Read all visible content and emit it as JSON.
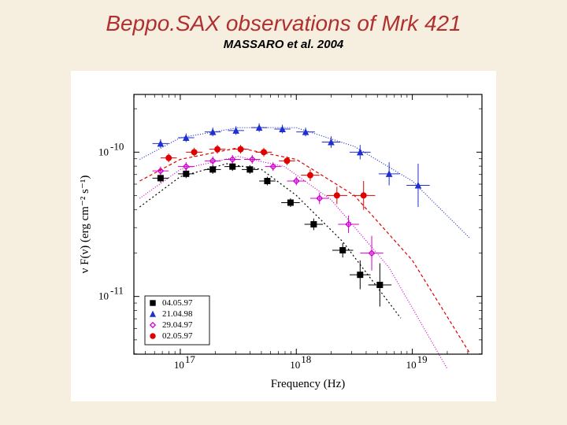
{
  "title": "Beppo.SAX observations of Mrk 421",
  "subtitle": "MASSARO et al. 2004",
  "chart": {
    "type": "scatter",
    "background_color": "#ffffff",
    "page_background": "#f6efe0",
    "xlabel": "Frequency   (Hz)",
    "ylabel": "ν F(ν)   (erg cm⁻² s⁻¹)",
    "label_fontsize": 15,
    "tick_fontsize": 13,
    "x_scale": "log",
    "y_scale": "log",
    "xlim_log10": [
      16.6,
      19.6
    ],
    "ylim_log10": [
      -11.4,
      -9.6
    ],
    "xticks_log10": [
      17,
      18,
      19
    ],
    "yticks_log10": [
      -11,
      -10
    ],
    "xtick_labels": [
      "10^17",
      "10^18",
      "10^19"
    ],
    "ytick_labels": [
      "10^-11",
      "10^-10"
    ],
    "minor_ticks": true,
    "series": [
      {
        "id": "s0_04_05_97",
        "label": "04.05.97",
        "marker": "square_filled",
        "color": "#000000",
        "line_color": "#000000",
        "line_dash": "2,3",
        "points_log10": [
          [
            16.83,
            -10.18
          ],
          [
            17.05,
            -10.15
          ],
          [
            17.28,
            -10.12
          ],
          [
            17.45,
            -10.1
          ],
          [
            17.6,
            -10.12
          ],
          [
            17.75,
            -10.2
          ],
          [
            17.95,
            -10.35
          ],
          [
            18.15,
            -10.5
          ],
          [
            18.4,
            -10.68
          ],
          [
            18.55,
            -10.85
          ],
          [
            18.72,
            -10.92
          ]
        ],
        "y_err_log10": [
          0.03,
          0.03,
          0.03,
          0.03,
          0.03,
          0.03,
          0.03,
          0.04,
          0.05,
          0.1,
          0.15
        ],
        "x_err_log10": [
          0.07,
          0.07,
          0.07,
          0.07,
          0.07,
          0.07,
          0.08,
          0.08,
          0.09,
          0.09,
          0.1
        ],
        "fit_log10": [
          [
            16.65,
            -10.38
          ],
          [
            17.0,
            -10.17
          ],
          [
            17.4,
            -10.08
          ],
          [
            17.7,
            -10.12
          ],
          [
            18.0,
            -10.3
          ],
          [
            18.4,
            -10.62
          ],
          [
            18.9,
            -11.15
          ],
          [
            19.4,
            -11.9
          ]
        ]
      },
      {
        "id": "s1_21_04_98",
        "label": "21.04.98",
        "marker": "triangle_filled",
        "color": "#2030d0",
        "line_color": "#2030d0",
        "line_dash": "1,2",
        "points_log10": [
          [
            16.83,
            -9.94
          ],
          [
            17.05,
            -9.9
          ],
          [
            17.28,
            -9.86
          ],
          [
            17.48,
            -9.85
          ],
          [
            17.68,
            -9.83
          ],
          [
            17.88,
            -9.84
          ],
          [
            18.08,
            -9.86
          ],
          [
            18.3,
            -9.93
          ],
          [
            18.55,
            -10.0
          ],
          [
            18.8,
            -10.15
          ],
          [
            19.05,
            -10.23
          ]
        ],
        "y_err_log10": [
          0.03,
          0.03,
          0.03,
          0.03,
          0.03,
          0.03,
          0.03,
          0.04,
          0.05,
          0.08,
          0.15
        ],
        "x_err_log10": [
          0.07,
          0.07,
          0.07,
          0.07,
          0.07,
          0.07,
          0.08,
          0.08,
          0.09,
          0.09,
          0.1
        ],
        "fit_log10": [
          [
            16.65,
            -10.05
          ],
          [
            17.0,
            -9.9
          ],
          [
            17.5,
            -9.83
          ],
          [
            18.0,
            -9.83
          ],
          [
            18.5,
            -9.96
          ],
          [
            19.0,
            -10.2
          ],
          [
            19.5,
            -10.6
          ]
        ]
      },
      {
        "id": "s2_29_04_97",
        "label": "29.04.97",
        "marker": "diamond_open",
        "color": "#d000d0",
        "line_color": "#d000d0",
        "line_dash": "1,2",
        "points_log10": [
          [
            16.83,
            -10.13
          ],
          [
            17.05,
            -10.1
          ],
          [
            17.28,
            -10.06
          ],
          [
            17.45,
            -10.05
          ],
          [
            17.62,
            -10.05
          ],
          [
            17.8,
            -10.1
          ],
          [
            18.0,
            -10.2
          ],
          [
            18.2,
            -10.32
          ],
          [
            18.45,
            -10.5
          ],
          [
            18.65,
            -10.7
          ]
        ],
        "y_err_log10": [
          0.03,
          0.03,
          0.03,
          0.03,
          0.03,
          0.03,
          0.03,
          0.04,
          0.06,
          0.12
        ],
        "x_err_log10": [
          0.07,
          0.07,
          0.07,
          0.07,
          0.07,
          0.07,
          0.08,
          0.08,
          0.09,
          0.1
        ],
        "fit_log10": [
          [
            16.65,
            -10.32
          ],
          [
            17.0,
            -10.12
          ],
          [
            17.5,
            -10.03
          ],
          [
            17.9,
            -10.1
          ],
          [
            18.3,
            -10.33
          ],
          [
            18.8,
            -10.8
          ],
          [
            19.3,
            -11.5
          ]
        ]
      },
      {
        "id": "s3_02_05_97",
        "label": "02.05.97",
        "marker": "circle_filled",
        "color": "#e00000",
        "line_color": "#e00000",
        "line_dash": "4,3",
        "points_log10": [
          [
            16.9,
            -10.04
          ],
          [
            17.12,
            -10.0
          ],
          [
            17.32,
            -9.98
          ],
          [
            17.52,
            -9.98
          ],
          [
            17.72,
            -10.0
          ],
          [
            17.92,
            -10.06
          ],
          [
            18.12,
            -10.16
          ],
          [
            18.35,
            -10.3
          ],
          [
            18.58,
            -10.3
          ]
        ],
        "y_err_log10": [
          0.03,
          0.03,
          0.03,
          0.03,
          0.03,
          0.03,
          0.04,
          0.06,
          0.1
        ],
        "x_err_log10": [
          0.07,
          0.07,
          0.07,
          0.07,
          0.07,
          0.07,
          0.08,
          0.09,
          0.1
        ],
        "fit_log10": [
          [
            16.65,
            -10.2
          ],
          [
            17.0,
            -10.05
          ],
          [
            17.5,
            -9.97
          ],
          [
            18.0,
            -10.05
          ],
          [
            18.5,
            -10.3
          ],
          [
            19.0,
            -10.75
          ],
          [
            19.5,
            -11.4
          ]
        ]
      }
    ],
    "legend": {
      "position": "lower-left-inside",
      "box": true,
      "box_color": "#000000",
      "items": [
        {
          "marker": "square_filled",
          "color": "#000000",
          "label": "04.05.97"
        },
        {
          "marker": "triangle_filled",
          "color": "#2030d0",
          "label": "21.04.98"
        },
        {
          "marker": "diamond_open",
          "color": "#d000d0",
          "label": "29.04.97"
        },
        {
          "marker": "circle_filled",
          "color": "#e00000",
          "label": "02.05.97"
        }
      ]
    }
  }
}
